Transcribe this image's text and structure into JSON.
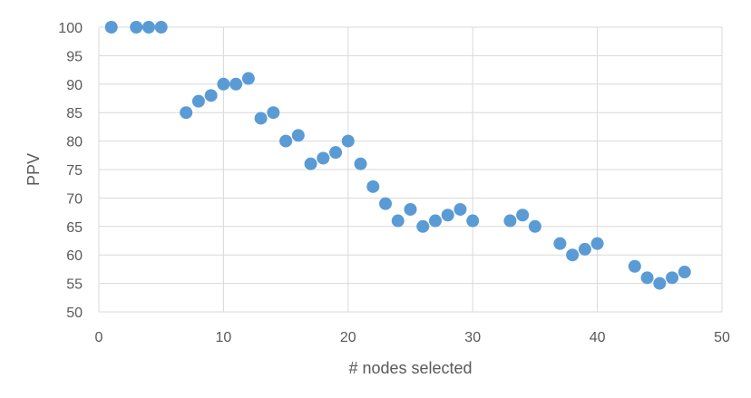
{
  "chart_data": {
    "type": "scatter",
    "title": "",
    "xlabel": "# nodes selected",
    "ylabel": "PPV",
    "xlim": [
      0,
      50
    ],
    "ylim": [
      50,
      100
    ],
    "x_ticks": [
      0,
      10,
      20,
      30,
      40,
      50
    ],
    "y_ticks": [
      50,
      55,
      60,
      65,
      70,
      75,
      80,
      85,
      90,
      95,
      100
    ],
    "grid": "on",
    "legend": "none",
    "marker_color": "#5B9BD5",
    "series": [
      {
        "x": [
          1,
          3,
          4,
          5,
          7,
          8,
          9,
          10,
          11,
          12,
          13,
          14,
          15,
          16,
          17,
          18,
          19,
          20,
          21,
          22,
          23,
          24,
          25,
          26,
          27,
          28,
          29,
          30,
          33,
          34,
          35,
          37,
          38,
          39,
          40,
          43,
          44,
          45,
          46,
          47
        ],
        "y": [
          100,
          100,
          100,
          100,
          85,
          87,
          88,
          90,
          90,
          91,
          84,
          85,
          80,
          81,
          76,
          77,
          78,
          80,
          76,
          72,
          69,
          66,
          68,
          65,
          66,
          67,
          68,
          66,
          66,
          67,
          65,
          62,
          60,
          61,
          62,
          58,
          56,
          55,
          56,
          57
        ]
      }
    ]
  }
}
